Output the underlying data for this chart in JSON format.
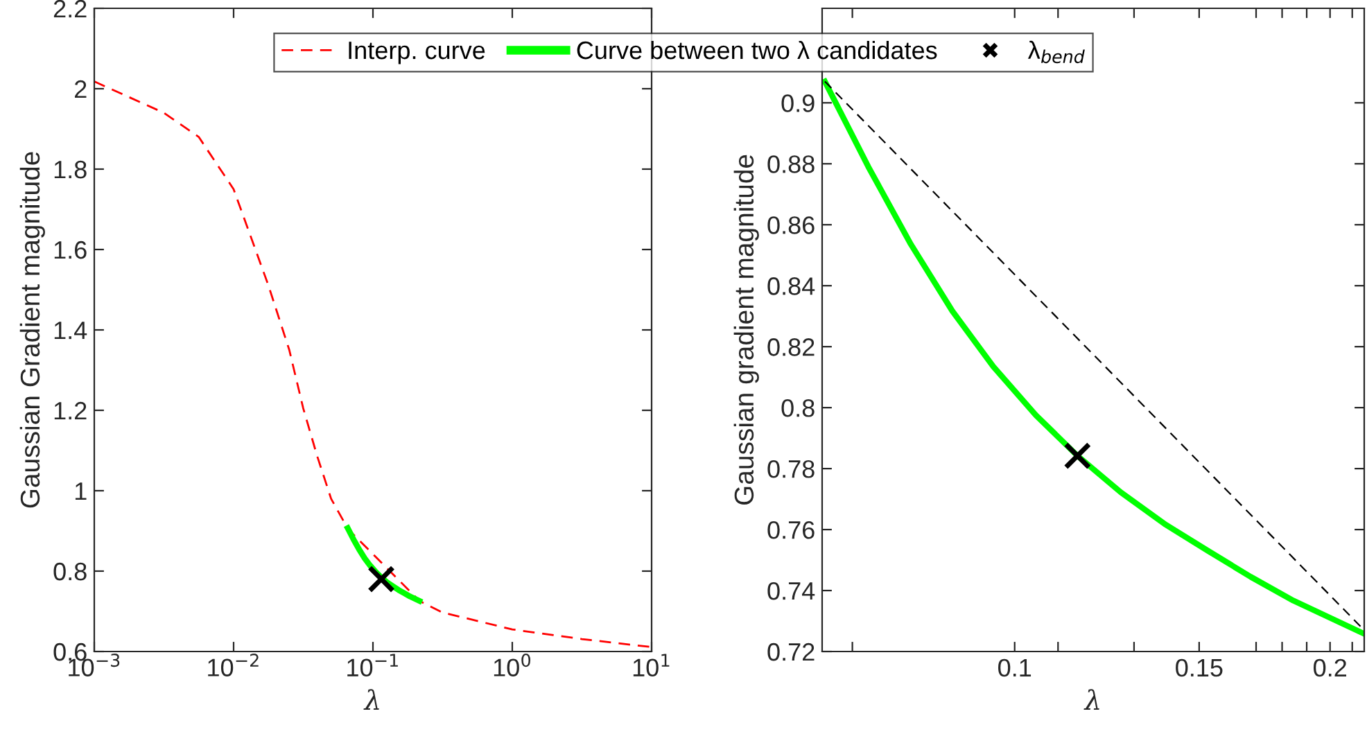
{
  "chart_data": [
    {
      "type": "line",
      "xlabel": "λ",
      "ylabel": "Gaussian Gradient magnitude",
      "log": "x",
      "xlim": [
        0.001,
        10
      ],
      "xticks": [
        {
          "value": 0.001,
          "label": "10$^{−3}$"
        },
        {
          "value": 0.01,
          "label": "10$^{−2}$"
        },
        {
          "value": 0.1,
          "label": "10$^{−1}$"
        },
        {
          "value": 1,
          "label": "10$^{0}$"
        },
        {
          "value": 10,
          "label": "10$^{1}$"
        }
      ],
      "ylim": [
        0.6,
        2.2
      ],
      "yticks": [
        0.6,
        0.8,
        1,
        1.2,
        1.4,
        1.6,
        1.8,
        2,
        2.2
      ],
      "grid": false,
      "legend": "top",
      "series": [
        {
          "name": "Interp. curve",
          "type": "line",
          "color": "#ff0000",
          "line_style": "dashed",
          "marker": "none",
          "x": [
            0.001,
            0.00316,
            0.00562,
            0.01,
            0.0178,
            0.0251,
            0.0316,
            0.0398,
            0.0501,
            0.0661,
            0.2156,
            0.316,
            1,
            3.16,
            10
          ],
          "values": [
            2.018,
            1.94,
            1.88,
            1.75,
            1.51,
            1.35,
            1.205,
            1.086,
            0.98,
            0.905,
            0.726,
            0.697,
            0.655,
            0.631,
            0.611
          ]
        },
        {
          "name": "Curve between two λ candidates",
          "type": "line",
          "color": "#00ff00",
          "line_style": "solid",
          "marker": "none",
          "x": [
            0.0659,
            0.0725,
            0.0796,
            0.0872,
            0.0954,
            0.1048,
            0.1148,
            0.1263,
            0.1394,
            0.153,
            0.168,
            0.1845,
            0.2156
          ],
          "values": [
            0.907,
            0.879,
            0.854,
            0.832,
            0.814,
            0.798,
            0.784,
            0.772,
            0.762,
            0.753,
            0.745,
            0.737,
            0.726
          ]
        },
        {
          "name": "λ$_{bend}$",
          "type": "scatter",
          "color": "#000000",
          "marker": "cross",
          "x": [
            0.1148
          ],
          "values": [
            0.78
          ]
        }
      ]
    },
    {
      "type": "line",
      "xlabel": "λ",
      "ylabel": "Gaussian gradient magnitude",
      "log": "x",
      "xlim": [
        0.0655,
        0.2156
      ],
      "xticks": [
        {
          "value": 0.07,
          "label": null
        },
        0.1,
        {
          "value": 0.11,
          "label": null
        },
        {
          "value": 0.13,
          "label": null
        },
        0.15,
        {
          "value": 0.17,
          "label": null
        },
        {
          "value": 0.18,
          "label": null
        },
        {
          "value": 0.19,
          "label": null
        },
        0.2,
        {
          "value": 0.21,
          "label": null
        }
      ],
      "ylim": [
        0.72,
        0.931
      ],
      "yticks": [
        0.72,
        0.74,
        0.76,
        0.78,
        0.8,
        0.82,
        0.84,
        0.86,
        0.88,
        0.9
      ],
      "grid": false,
      "series": [
        {
          "type": "line",
          "color": "#00ff00",
          "line_style": "solid",
          "marker": "none",
          "x": [
            0.0659,
            0.0725,
            0.0796,
            0.0872,
            0.0954,
            0.1048,
            0.1148,
            0.1263,
            0.1394,
            0.153,
            0.168,
            0.1845,
            0.2156
          ],
          "values": [
            0.907,
            0.879,
            0.8536,
            0.8317,
            0.8135,
            0.7975,
            0.7842,
            0.7722,
            0.7616,
            0.753,
            0.7445,
            0.7367,
            0.7258
          ]
        },
        {
          "type": "line",
          "color": "#000000",
          "line_style": "dashed",
          "marker": "none",
          "x": [
            0.0659,
            0.2156
          ],
          "values": [
            0.907,
            0.727
          ]
        },
        {
          "type": "scatter",
          "color": "#000000",
          "marker": "cross",
          "x": [
            0.1148
          ],
          "values": [
            0.7842
          ]
        }
      ]
    }
  ]
}
